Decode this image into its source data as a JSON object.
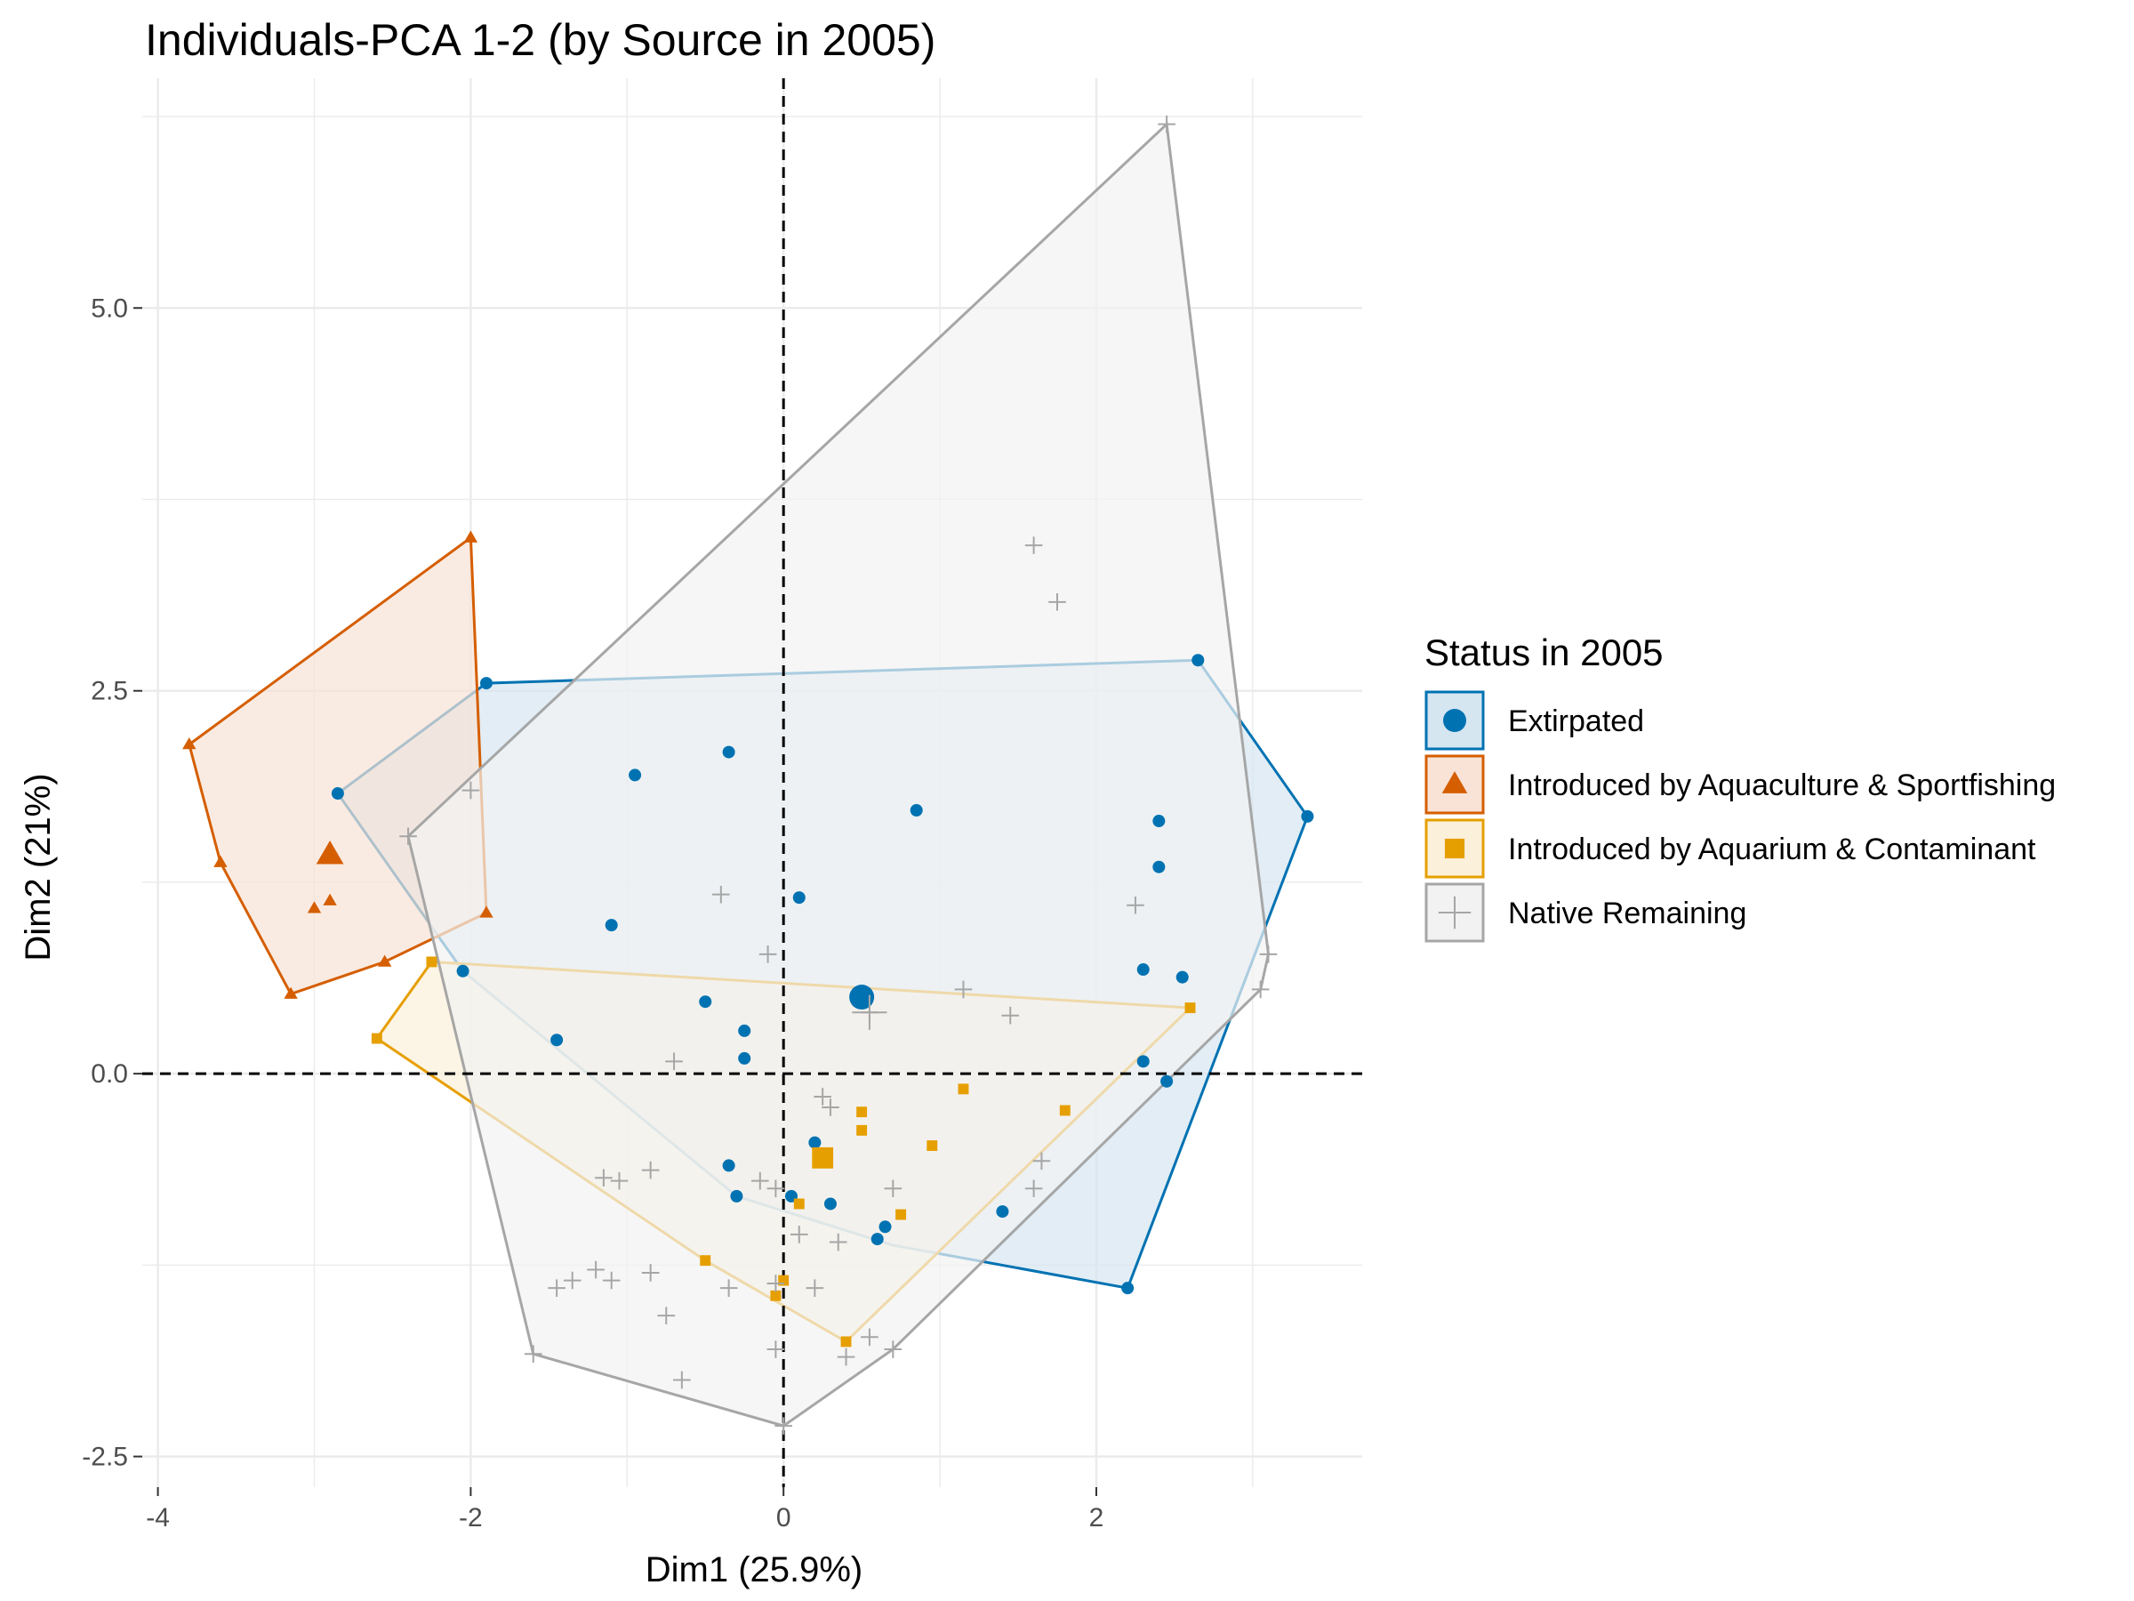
{
  "chart_data": {
    "type": "scatter",
    "title": "Individuals-PCA 1-2 (by Source in 2005)",
    "xlabel": "Dim1 (25.9%)",
    "ylabel": "Dim2 (21%)",
    "xlim": [
      -4.1,
      3.7
    ],
    "ylim": [
      -2.7,
      6.5
    ],
    "xticks": [
      -4,
      -2,
      0,
      2
    ],
    "xtick_labels": [
      "-4",
      "-2",
      "0",
      "2"
    ],
    "yticks": [
      -2.5,
      0.0,
      2.5,
      5.0
    ],
    "ytick_labels": [
      "-2.5",
      "0.0",
      "2.5",
      "5.0"
    ],
    "grid": true,
    "reference_lines": {
      "x": 0,
      "y": 0,
      "style": "dashed"
    },
    "legend": {
      "title": "Status in 2005",
      "position": "right"
    },
    "series": [
      {
        "name": "Extirpated",
        "marker": "circle",
        "color": "#0072B2",
        "fill": "#d5e6f1",
        "centroid": [
          0.5,
          0.5
        ],
        "hull": [
          [
            -2.85,
            1.83
          ],
          [
            -1.9,
            2.55
          ],
          [
            2.65,
            2.7
          ],
          [
            3.35,
            1.68
          ],
          [
            2.2,
            -1.4
          ],
          [
            0.7,
            -1.12
          ],
          [
            -0.3,
            -0.8
          ],
          [
            -2.05,
            0.67
          ]
        ],
        "points": [
          [
            -2.85,
            1.83
          ],
          [
            -1.9,
            2.55
          ],
          [
            -0.35,
            2.1
          ],
          [
            -0.95,
            1.95
          ],
          [
            0.85,
            1.72
          ],
          [
            0.1,
            1.15
          ],
          [
            -1.1,
            0.97
          ],
          [
            -0.5,
            0.47
          ],
          [
            -0.25,
            0.28
          ],
          [
            -0.25,
            0.1
          ],
          [
            -1.45,
            0.22
          ],
          [
            -2.05,
            0.67
          ],
          [
            2.65,
            2.7
          ],
          [
            3.35,
            1.68
          ],
          [
            2.4,
            1.65
          ],
          [
            2.4,
            1.35
          ],
          [
            2.3,
            0.68
          ],
          [
            2.55,
            0.63
          ],
          [
            2.3,
            0.08
          ],
          [
            2.45,
            -0.05
          ],
          [
            2.2,
            -1.4
          ],
          [
            -0.35,
            -0.6
          ],
          [
            -0.3,
            -0.8
          ],
          [
            0.05,
            -0.8
          ],
          [
            0.2,
            -0.45
          ],
          [
            0.3,
            -0.85
          ],
          [
            0.65,
            -1.0
          ],
          [
            0.6,
            -1.08
          ],
          [
            1.4,
            -0.9
          ]
        ]
      },
      {
        "name": "Introduced by Aquaculture & Sportfishing",
        "marker": "triangle",
        "color": "#D55E00",
        "fill": "#f8e3d6",
        "centroid": [
          -2.9,
          1.43
        ],
        "hull": [
          [
            -3.8,
            2.15
          ],
          [
            -2.0,
            3.5
          ],
          [
            -1.9,
            1.05
          ],
          [
            -2.55,
            0.73
          ],
          [
            -3.15,
            0.52
          ],
          [
            -3.6,
            1.38
          ]
        ],
        "points": [
          [
            -3.8,
            2.15
          ],
          [
            -2.0,
            3.5
          ],
          [
            -1.9,
            1.05
          ],
          [
            -2.55,
            0.73
          ],
          [
            -3.15,
            0.52
          ],
          [
            -3.6,
            1.38
          ],
          [
            -3.0,
            1.08
          ],
          [
            -2.9,
            1.13
          ]
        ]
      },
      {
        "name": "Introduced by Aquarium & Contaminant",
        "marker": "square",
        "color": "#E69F00",
        "fill": "#fbf0d9",
        "centroid": [
          0.25,
          -0.55
        ],
        "hull": [
          [
            -2.25,
            0.73
          ],
          [
            2.6,
            0.43
          ],
          [
            0.4,
            -1.75
          ],
          [
            -0.5,
            -1.22
          ],
          [
            -2.6,
            0.23
          ]
        ],
        "points": [
          [
            -2.25,
            0.73
          ],
          [
            -2.6,
            0.23
          ],
          [
            2.6,
            0.43
          ],
          [
            0.4,
            -1.75
          ],
          [
            -0.5,
            -1.22
          ],
          [
            -0.05,
            -1.45
          ],
          [
            0.0,
            -1.35
          ],
          [
            0.1,
            -0.85
          ],
          [
            0.5,
            -0.25
          ],
          [
            0.5,
            -0.37
          ],
          [
            0.75,
            -0.92
          ],
          [
            0.95,
            -0.47
          ],
          [
            1.15,
            -0.1
          ],
          [
            1.8,
            -0.24
          ]
        ]
      },
      {
        "name": "Native Remaining",
        "marker": "plus",
        "color": "#a6a6a6",
        "fill": "#f2f2f2",
        "centroid": [
          0.55,
          0.4
        ],
        "hull": [
          [
            2.45,
            6.2
          ],
          [
            3.1,
            0.78
          ],
          [
            3.05,
            0.55
          ],
          [
            0.7,
            -1.8
          ],
          [
            0.0,
            -2.3
          ],
          [
            -1.6,
            -1.83
          ],
          [
            -2.4,
            1.55
          ]
        ],
        "points": [
          [
            2.45,
            6.2
          ],
          [
            1.6,
            3.45
          ],
          [
            1.75,
            3.08
          ],
          [
            3.1,
            0.78
          ],
          [
            3.05,
            0.55
          ],
          [
            2.25,
            1.1
          ],
          [
            -2.4,
            1.55
          ],
          [
            -2.0,
            1.85
          ],
          [
            -0.4,
            1.17
          ],
          [
            -0.1,
            0.78
          ],
          [
            0.55,
            0.4
          ],
          [
            1.15,
            0.55
          ],
          [
            1.45,
            0.38
          ],
          [
            -0.7,
            0.08
          ],
          [
            0.25,
            -0.15
          ],
          [
            0.3,
            -0.22
          ],
          [
            -1.15,
            -0.68
          ],
          [
            -1.05,
            -0.7
          ],
          [
            -0.85,
            -0.63
          ],
          [
            -0.15,
            -0.7
          ],
          [
            -0.05,
            -0.75
          ],
          [
            0.7,
            -0.75
          ],
          [
            1.6,
            -0.75
          ],
          [
            1.65,
            -0.57
          ],
          [
            -1.45,
            -1.4
          ],
          [
            -1.35,
            -1.35
          ],
          [
            -1.2,
            -1.28
          ],
          [
            -1.1,
            -1.35
          ],
          [
            -0.85,
            -1.3
          ],
          [
            -0.35,
            -1.4
          ],
          [
            -0.05,
            -1.37
          ],
          [
            0.2,
            -1.4
          ],
          [
            -0.75,
            -1.58
          ],
          [
            -0.65,
            -2.0
          ],
          [
            -0.05,
            -1.8
          ],
          [
            0.4,
            -1.85
          ],
          [
            0.55,
            -1.72
          ],
          [
            0.7,
            -1.8
          ],
          [
            -1.6,
            -1.83
          ],
          [
            0.0,
            -2.3
          ],
          [
            0.35,
            -1.1
          ],
          [
            0.1,
            -1.05
          ]
        ]
      }
    ]
  }
}
